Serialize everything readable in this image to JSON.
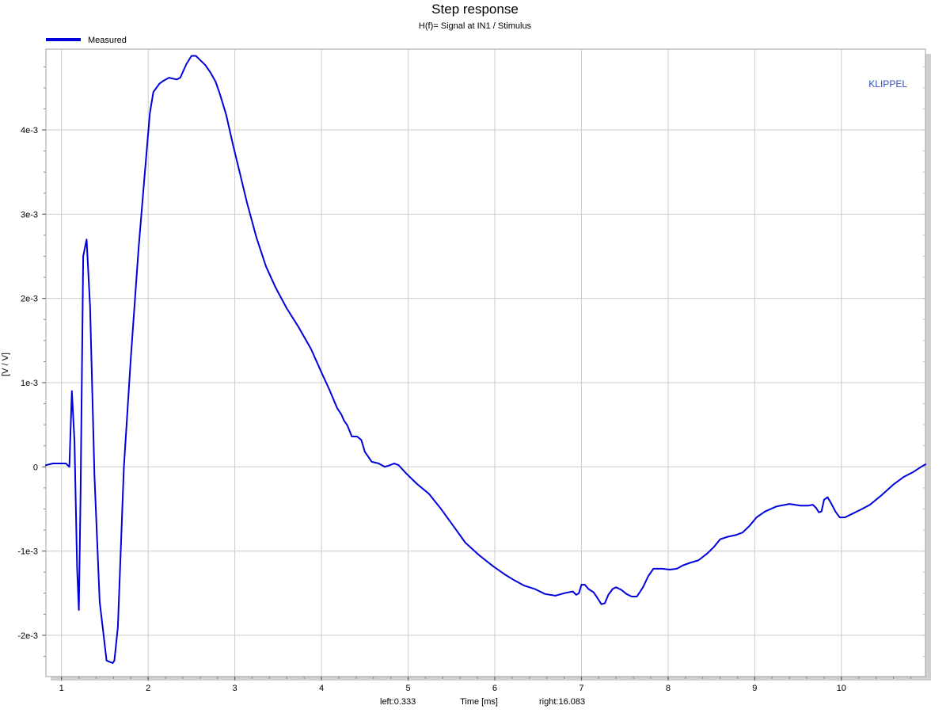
{
  "chart_data": {
    "type": "line",
    "title": "Step response",
    "subtitle": "H(f)= Signal at IN1 / Stimulus",
    "xlabel": "Time [ms]",
    "ylabel": "[V / V]",
    "range_left": "left:0.333",
    "range_right": "right:16.083",
    "watermark": "KLIPPEL",
    "xlim": [
      0.82,
      10.97
    ],
    "ylim": [
      -0.00249,
      0.00496
    ],
    "x_ticks": [
      1,
      2,
      3,
      4,
      5,
      6,
      7,
      8,
      9,
      10
    ],
    "x_tick_labels": [
      "1",
      "2",
      "3",
      "4",
      "5",
      "6",
      "7",
      "8",
      "9",
      "10"
    ],
    "y_ticks": [
      -0.002,
      -0.001,
      0,
      0.001,
      0.002,
      0.003,
      0.004
    ],
    "y_tick_labels": [
      "-2e-3",
      "-1e-3",
      "0",
      "1e-3",
      "2e-3",
      "3e-3",
      "4e-3"
    ],
    "grid": true,
    "legend_position": "top-left",
    "series": [
      {
        "name": "Measured",
        "color": "#0000dd",
        "x": [
          0.82,
          0.9,
          1.0,
          1.05,
          1.09,
          1.12,
          1.15,
          1.18,
          1.2,
          1.22,
          1.25,
          1.29,
          1.33,
          1.38,
          1.44,
          1.52,
          1.59,
          1.61,
          1.65,
          1.72,
          1.8,
          1.89,
          1.95,
          2.02,
          2.06,
          2.13,
          2.17,
          2.24,
          2.33,
          2.37,
          2.44,
          2.5,
          2.55,
          2.6,
          2.66,
          2.72,
          2.78,
          2.83,
          2.9,
          2.98,
          3.06,
          3.14,
          3.25,
          3.36,
          3.47,
          3.6,
          3.73,
          3.88,
          4.0,
          4.09,
          4.18,
          4.23,
          4.26,
          4.3,
          4.35,
          4.41,
          4.46,
          4.5,
          4.58,
          4.66,
          4.73,
          4.79,
          4.84,
          4.89,
          4.98,
          5.1,
          5.24,
          5.38,
          5.52,
          5.66,
          5.82,
          5.98,
          6.12,
          6.23,
          6.34,
          6.46,
          6.58,
          6.7,
          6.8,
          6.85,
          6.9,
          6.94,
          6.97,
          7.0,
          7.04,
          7.08,
          7.14,
          7.18,
          7.23,
          7.27,
          7.31,
          7.36,
          7.4,
          7.46,
          7.52,
          7.58,
          7.64,
          7.71,
          7.77,
          7.83,
          7.93,
          8.02,
          8.1,
          8.17,
          8.25,
          8.35,
          8.45,
          8.53,
          8.6,
          8.69,
          8.78,
          8.86,
          8.94,
          9.02,
          9.12,
          9.25,
          9.4,
          9.53,
          9.62,
          9.67,
          9.71,
          9.74,
          9.77,
          9.8,
          9.84,
          9.88,
          9.93,
          9.98,
          10.04,
          10.12,
          10.22,
          10.33,
          10.46,
          10.6,
          10.72,
          10.83,
          10.92,
          10.97
        ],
        "y": [
          2e-05,
          4e-05,
          4e-05,
          4e-05,
          0.0,
          0.0009,
          0.0003,
          -0.0012,
          -0.0017,
          -0.0003,
          0.0025,
          0.0027,
          0.0019,
          -0.0001,
          -0.0016,
          -0.0023,
          -0.00233,
          -0.0023,
          -0.0019,
          0.0,
          0.0013,
          0.0026,
          0.00335,
          0.0042,
          0.00445,
          0.00455,
          0.00458,
          0.00462,
          0.0046,
          0.00462,
          0.00478,
          0.00488,
          0.00488,
          0.00483,
          0.00477,
          0.00468,
          0.00457,
          0.00442,
          0.00418,
          0.00382,
          0.00348,
          0.00314,
          0.00272,
          0.00238,
          0.00213,
          0.00188,
          0.00167,
          0.0014,
          0.00112,
          0.00092,
          0.0007,
          0.00062,
          0.00055,
          0.00049,
          0.00036,
          0.00036,
          0.00032,
          0.00018,
          6e-05,
          4e-05,
          0.0,
          2e-05,
          4e-05,
          2e-05,
          -8e-05,
          -0.0002,
          -0.00032,
          -0.0005,
          -0.0007,
          -0.0009,
          -0.00105,
          -0.00118,
          -0.00128,
          -0.00135,
          -0.00141,
          -0.00145,
          -0.00151,
          -0.00153,
          -0.0015,
          -0.00149,
          -0.00148,
          -0.00152,
          -0.0015,
          -0.0014,
          -0.0014,
          -0.00145,
          -0.00149,
          -0.00155,
          -0.00163,
          -0.00162,
          -0.00152,
          -0.00145,
          -0.00143,
          -0.00146,
          -0.00151,
          -0.00154,
          -0.00154,
          -0.00143,
          -0.0013,
          -0.00121,
          -0.00121,
          -0.00122,
          -0.00121,
          -0.00117,
          -0.00114,
          -0.00111,
          -0.00103,
          -0.00095,
          -0.00086,
          -0.00083,
          -0.00081,
          -0.00078,
          -0.0007,
          -0.0006,
          -0.00053,
          -0.00047,
          -0.00044,
          -0.00046,
          -0.00046,
          -0.00045,
          -0.00049,
          -0.00054,
          -0.00053,
          -0.00039,
          -0.00036,
          -0.00043,
          -0.00053,
          -0.0006,
          -0.0006,
          -0.00056,
          -0.00051,
          -0.00045,
          -0.00034,
          -0.00021,
          -0.00012,
          -6e-05,
          0.0,
          3e-05
        ]
      }
    ]
  }
}
